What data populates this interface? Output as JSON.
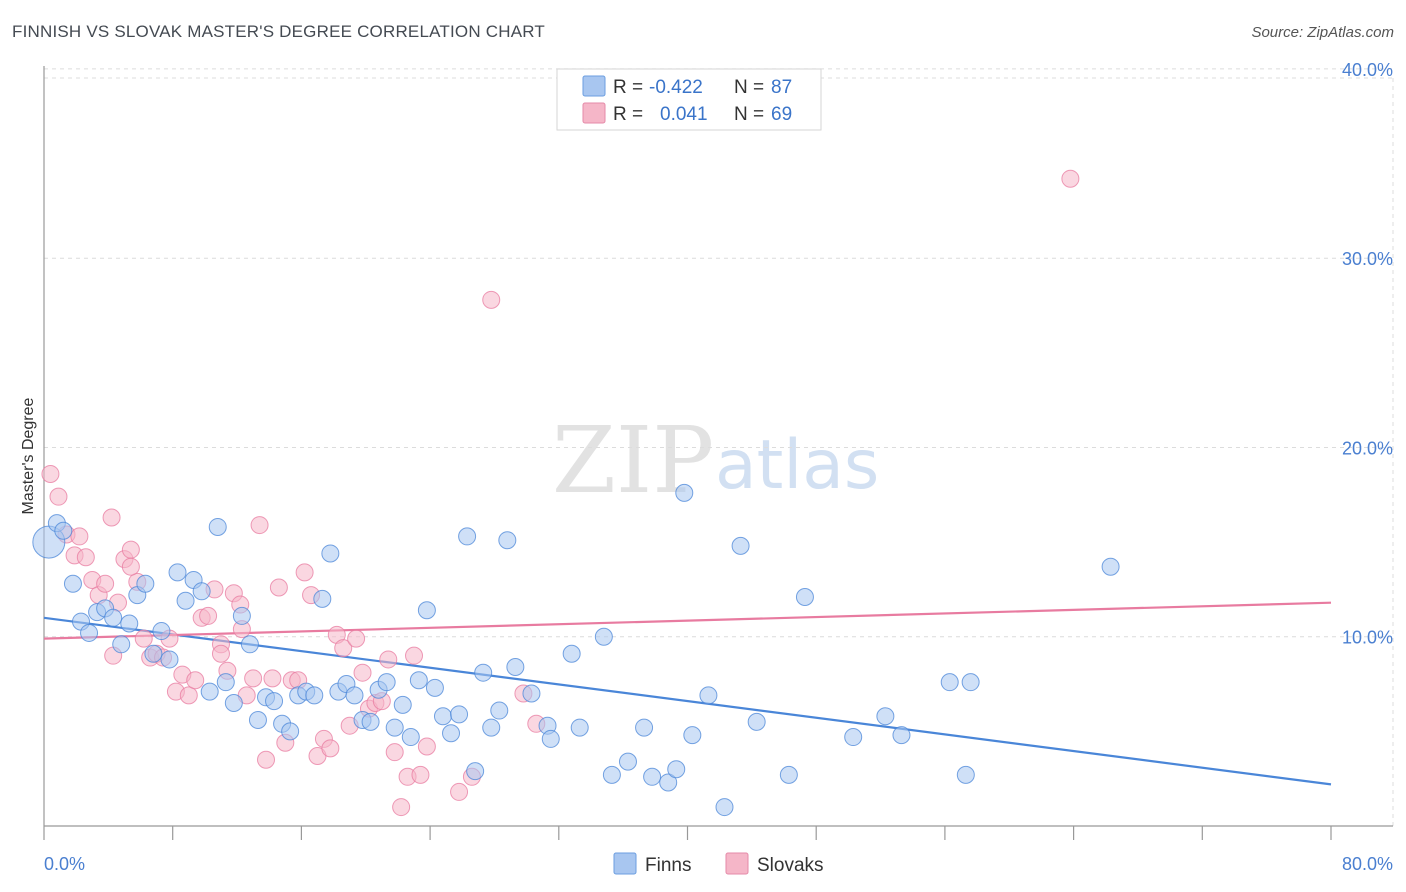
{
  "title": "FINNISH VS SLOVAK MASTER'S DEGREE CORRELATION CHART",
  "source": "Source: ZipAtlas.com",
  "watermark": {
    "part1": "ZIP",
    "part2": "atlas"
  },
  "legend": {
    "rows": [
      {
        "r_label": "R =",
        "r_value": "-0.422",
        "n_label": "N =",
        "n_value": "87",
        "color": "#a8c6f0"
      },
      {
        "r_label": "R =",
        "r_value": "0.041",
        "n_label": "N =",
        "n_value": "69",
        "color": "#f5b6c8"
      }
    ]
  },
  "bottom_legend": [
    {
      "label": "Finns",
      "color": "#a8c6f0"
    },
    {
      "label": "Slovaks",
      "color": "#f5b6c8"
    }
  ],
  "chart_data": {
    "type": "scatter",
    "title": "FINNISH VS SLOVAK MASTER'S DEGREE CORRELATION CHART",
    "xlabel": "",
    "ylabel": "Master's Degree",
    "xlim": [
      0,
      80
    ],
    "ylim": [
      0,
      41
    ],
    "x_tick_labels": [
      "0.0%",
      "80.0%"
    ],
    "y_ticks": [
      10,
      20,
      30,
      40
    ],
    "y_tick_labels": [
      "10.0%",
      "20.0%",
      "30.0%",
      "40.0%"
    ],
    "grid": true,
    "legend_position": "top-center",
    "series": [
      {
        "name": "Finns",
        "color": "#4a86d8",
        "fill": "#a8c6f0",
        "trend": {
          "x": [
            0,
            80
          ],
          "y": [
            11.0,
            2.2
          ]
        },
        "points": [
          [
            0.3,
            15.0
          ],
          [
            0.8,
            16.0
          ],
          [
            1.2,
            15.6
          ],
          [
            1.8,
            12.8
          ],
          [
            2.3,
            10.8
          ],
          [
            2.8,
            10.2
          ],
          [
            3.3,
            11.3
          ],
          [
            3.8,
            11.5
          ],
          [
            4.3,
            11.0
          ],
          [
            4.8,
            9.6
          ],
          [
            5.3,
            10.7
          ],
          [
            5.8,
            12.2
          ],
          [
            6.3,
            12.8
          ],
          [
            6.8,
            9.1
          ],
          [
            7.3,
            10.3
          ],
          [
            7.8,
            8.8
          ],
          [
            8.3,
            13.4
          ],
          [
            8.8,
            11.9
          ],
          [
            9.3,
            13.0
          ],
          [
            9.8,
            12.4
          ],
          [
            10.3,
            7.1
          ],
          [
            10.8,
            15.8
          ],
          [
            11.3,
            7.6
          ],
          [
            11.8,
            6.5
          ],
          [
            12.3,
            11.1
          ],
          [
            12.8,
            9.6
          ],
          [
            13.3,
            5.6
          ],
          [
            13.8,
            6.8
          ],
          [
            14.3,
            6.6
          ],
          [
            14.8,
            5.4
          ],
          [
            15.3,
            5.0
          ],
          [
            15.8,
            6.9
          ],
          [
            16.3,
            7.1
          ],
          [
            16.8,
            6.9
          ],
          [
            17.3,
            12.0
          ],
          [
            17.8,
            14.4
          ],
          [
            18.3,
            7.1
          ],
          [
            18.8,
            7.5
          ],
          [
            19.3,
            6.9
          ],
          [
            19.8,
            5.6
          ],
          [
            20.3,
            5.5
          ],
          [
            20.8,
            7.2
          ],
          [
            21.3,
            7.6
          ],
          [
            21.8,
            5.2
          ],
          [
            22.3,
            6.4
          ],
          [
            22.8,
            4.7
          ],
          [
            23.3,
            7.7
          ],
          [
            23.8,
            11.4
          ],
          [
            24.3,
            7.3
          ],
          [
            24.8,
            5.8
          ],
          [
            25.3,
            4.9
          ],
          [
            25.8,
            5.9
          ],
          [
            26.3,
            15.3
          ],
          [
            26.8,
            2.9
          ],
          [
            27.3,
            8.1
          ],
          [
            27.8,
            5.2
          ],
          [
            28.3,
            6.1
          ],
          [
            28.8,
            15.1
          ],
          [
            29.3,
            8.4
          ],
          [
            30.3,
            7.0
          ],
          [
            31.3,
            5.3
          ],
          [
            31.5,
            4.6
          ],
          [
            32.8,
            9.1
          ],
          [
            33.3,
            5.2
          ],
          [
            34.8,
            10.0
          ],
          [
            35.3,
            2.7
          ],
          [
            36.3,
            3.4
          ],
          [
            37.3,
            5.2
          ],
          [
            37.8,
            2.6
          ],
          [
            38.8,
            2.3
          ],
          [
            39.3,
            3.0
          ],
          [
            39.8,
            17.6
          ],
          [
            40.3,
            4.8
          ],
          [
            41.3,
            6.9
          ],
          [
            42.3,
            1.0
          ],
          [
            43.3,
            14.8
          ],
          [
            44.3,
            5.5
          ],
          [
            46.3,
            2.7
          ],
          [
            47.3,
            12.1
          ],
          [
            50.3,
            4.7
          ],
          [
            52.3,
            5.8
          ],
          [
            53.3,
            4.8
          ],
          [
            56.3,
            7.6
          ],
          [
            57.3,
            2.7
          ],
          [
            57.6,
            7.6
          ],
          [
            66.3,
            13.7
          ]
        ]
      },
      {
        "name": "Slovaks",
        "color": "#e87ba0",
        "fill": "#f5b6c8",
        "trend": {
          "x": [
            0,
            80
          ],
          "y": [
            9.9,
            11.8
          ]
        },
        "points": [
          [
            0.4,
            18.6
          ],
          [
            0.9,
            17.4
          ],
          [
            1.4,
            15.4
          ],
          [
            1.9,
            14.3
          ],
          [
            2.2,
            15.3
          ],
          [
            2.6,
            14.2
          ],
          [
            3.0,
            13.0
          ],
          [
            3.4,
            12.2
          ],
          [
            3.8,
            12.8
          ],
          [
            4.2,
            16.3
          ],
          [
            4.6,
            11.8
          ],
          [
            5.0,
            14.1
          ],
          [
            5.4,
            14.6
          ],
          [
            5.8,
            12.9
          ],
          [
            6.2,
            9.9
          ],
          [
            6.6,
            8.9
          ],
          [
            7.0,
            9.1
          ],
          [
            7.4,
            8.9
          ],
          [
            7.8,
            9.9
          ],
          [
            8.2,
            7.1
          ],
          [
            8.6,
            8.0
          ],
          [
            9.0,
            6.9
          ],
          [
            9.4,
            7.7
          ],
          [
            9.8,
            11.0
          ],
          [
            10.2,
            11.1
          ],
          [
            10.6,
            12.5
          ],
          [
            11.0,
            9.6
          ],
          [
            11.4,
            8.2
          ],
          [
            11.8,
            12.3
          ],
          [
            12.2,
            11.7
          ],
          [
            12.6,
            6.9
          ],
          [
            13.0,
            7.8
          ],
          [
            13.4,
            15.9
          ],
          [
            13.8,
            3.5
          ],
          [
            14.2,
            7.8
          ],
          [
            14.6,
            12.6
          ],
          [
            15.0,
            4.4
          ],
          [
            15.4,
            7.7
          ],
          [
            15.8,
            7.7
          ],
          [
            16.2,
            13.4
          ],
          [
            16.6,
            12.2
          ],
          [
            17.0,
            3.7
          ],
          [
            17.4,
            4.6
          ],
          [
            17.8,
            4.1
          ],
          [
            18.2,
            10.1
          ],
          [
            18.6,
            9.4
          ],
          [
            19.0,
            5.3
          ],
          [
            19.4,
            9.9
          ],
          [
            19.8,
            8.1
          ],
          [
            20.2,
            6.2
          ],
          [
            20.6,
            6.5
          ],
          [
            21.0,
            6.6
          ],
          [
            21.4,
            8.8
          ],
          [
            21.8,
            3.9
          ],
          [
            22.2,
            1.0
          ],
          [
            22.6,
            2.6
          ],
          [
            23.0,
            9.0
          ],
          [
            23.4,
            2.7
          ],
          [
            23.8,
            4.2
          ],
          [
            25.8,
            1.8
          ],
          [
            26.6,
            2.6
          ],
          [
            27.8,
            27.8
          ],
          [
            29.8,
            7.0
          ],
          [
            30.6,
            5.4
          ],
          [
            63.8,
            34.2
          ],
          [
            4.3,
            9.0
          ],
          [
            11.0,
            9.1
          ],
          [
            12.3,
            10.4
          ],
          [
            5.4,
            13.7
          ]
        ]
      }
    ]
  }
}
